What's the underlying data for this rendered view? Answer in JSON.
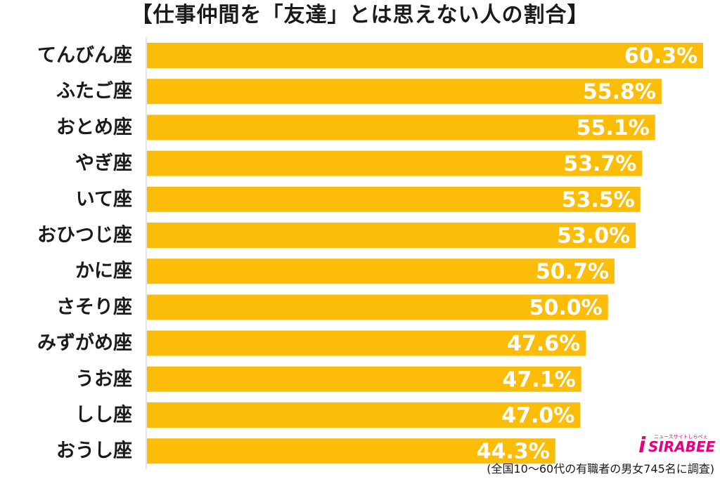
{
  "title": "【仕事仲間を「友達」とは思えない人の割合】",
  "footnote": "(全国10〜60代の有職者の男女745名に調査)",
  "logo": {
    "text": "SIRABEE",
    "sub": "ニュースサイトしらべぇ"
  },
  "colors": {
    "bar": "#fbbd08",
    "label_on_bar": "#ffffff",
    "category_text": "#1a1a1a",
    "axis_line": "#cccccc",
    "logo": "#e6007e"
  },
  "chart_data": {
    "type": "bar",
    "orientation": "horizontal",
    "title": "【仕事仲間を「友達」とは思えない人の割合】",
    "xlabel": "",
    "ylabel": "",
    "grid": false,
    "legend": "none",
    "xlim": [
      0,
      60.3
    ],
    "categories": [
      "てんびん座",
      "ふたご座",
      "おとめ座",
      "やぎ座",
      "いて座",
      "おひつじ座",
      "かに座",
      "さそり座",
      "みずがめ座",
      "うお座",
      "しし座",
      "おうし座"
    ],
    "values": [
      60.3,
      55.8,
      55.1,
      53.7,
      53.5,
      53.0,
      50.7,
      50.0,
      47.6,
      47.1,
      47.0,
      44.3
    ],
    "value_labels": [
      "60.3%",
      "55.8%",
      "55.1%",
      "53.7%",
      "53.5%",
      "53.0%",
      "50.7%",
      "50.0%",
      "47.6%",
      "47.1%",
      "47.0%",
      "44.3%"
    ]
  }
}
